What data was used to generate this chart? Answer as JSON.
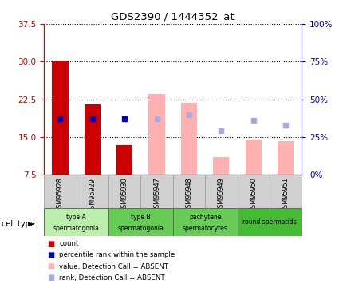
{
  "title": "GDS2390 / 1444352_at",
  "samples": [
    "GSM95928",
    "GSM95929",
    "GSM95930",
    "GSM95947",
    "GSM95948",
    "GSM95949",
    "GSM95950",
    "GSM95951"
  ],
  "count_values": [
    30.2,
    21.5,
    13.5,
    null,
    null,
    null,
    null,
    null
  ],
  "rank_values_pct": [
    37,
    37,
    37,
    null,
    null,
    null,
    null,
    null
  ],
  "absent_value": [
    null,
    null,
    null,
    23.5,
    21.8,
    11.0,
    14.5,
    14.2
  ],
  "absent_rank_pct": [
    null,
    null,
    null,
    37,
    40,
    29,
    36,
    33
  ],
  "ylim_left": [
    7.5,
    37.5
  ],
  "ylim_right": [
    0,
    100
  ],
  "yticks_left": [
    7.5,
    15.0,
    22.5,
    30.0,
    37.5
  ],
  "yticks_right": [
    0,
    25,
    50,
    75,
    100
  ],
  "bar_width": 0.5,
  "count_color": "#cc0000",
  "rank_color": "#0000bb",
  "absent_value_color": "#ffb0b0",
  "absent_rank_color": "#aaaadd",
  "left_axis_color": "#cc0000",
  "right_axis_color": "#0000bb",
  "cell_groups": [
    {
      "label": "type A\nspermatogonia",
      "start": 0,
      "end": 1,
      "color": "#bbeeaa"
    },
    {
      "label": "type B\nspermatogonia",
      "start": 2,
      "end": 3,
      "color": "#66cc55"
    },
    {
      "label": "pachytene\nspermatocytes",
      "start": 4,
      "end": 5,
      "color": "#66cc55"
    },
    {
      "label": "round spermatids",
      "start": 6,
      "end": 7,
      "color": "#44bb33"
    }
  ],
  "legend_items": [
    {
      "color": "#cc0000",
      "label": "count"
    },
    {
      "color": "#0000bb",
      "label": "percentile rank within the sample"
    },
    {
      "color": "#ffb0b0",
      "label": "value, Detection Call = ABSENT"
    },
    {
      "color": "#aaaadd",
      "label": "rank, Detection Call = ABSENT"
    }
  ]
}
